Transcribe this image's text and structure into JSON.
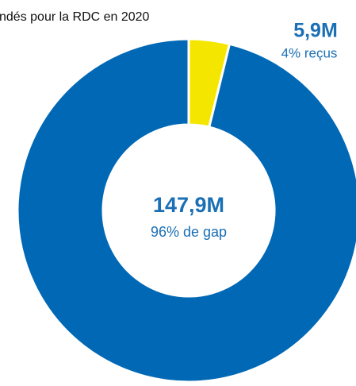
{
  "chart_data": {
    "type": "donut",
    "title": "ndés pour la RDC en 2020",
    "values": [
      5.9,
      147.9
    ],
    "value_labels": [
      "5,9M",
      "147,9M"
    ],
    "percent_labels": [
      "4% reçus",
      "96% de gap"
    ],
    "colors": [
      "#f5e600",
      "#0068b5"
    ]
  }
}
